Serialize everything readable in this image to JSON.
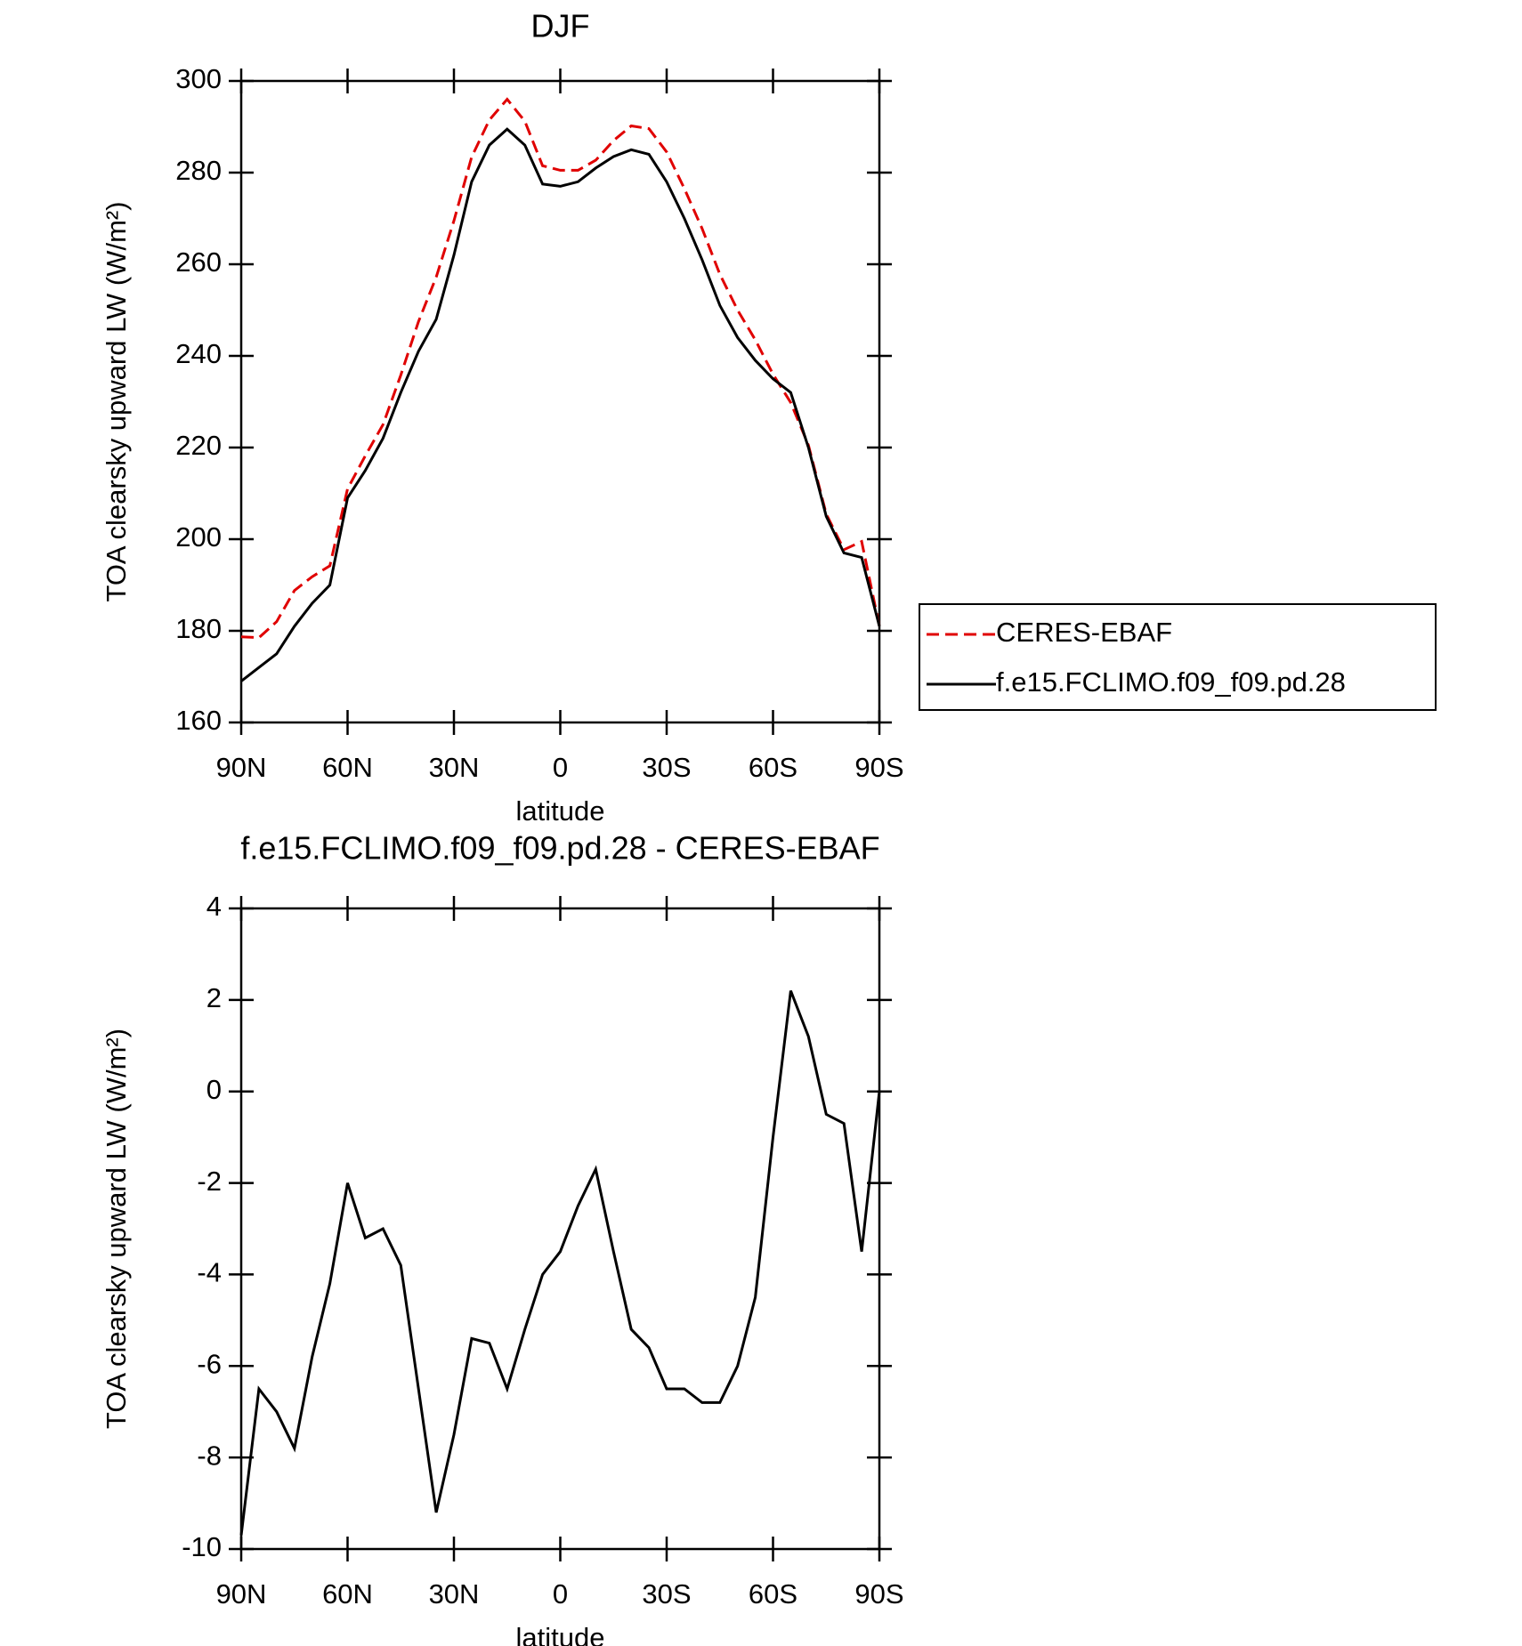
{
  "chart_data": [
    {
      "type": "line",
      "title": "DJF",
      "xlabel": "latitude",
      "ylabel": "TOA clearsky upward LW (W/m²)",
      "x": [
        90,
        85,
        80,
        75,
        70,
        65,
        60,
        55,
        50,
        45,
        40,
        35,
        30,
        25,
        20,
        15,
        10,
        5,
        0,
        -5,
        -10,
        -15,
        -20,
        -25,
        -30,
        -35,
        -40,
        -45,
        -50,
        -55,
        -60,
        -65,
        -70,
        -75,
        -80,
        -85,
        -90
      ],
      "series": [
        {
          "name": "CERES-EBAF",
          "color": "#e00000",
          "line_style": "dashed",
          "values": [
            178.7,
            178.5,
            182,
            188.8,
            191.8,
            194.2,
            211,
            218.2,
            225,
            235.8,
            247.5,
            257.2,
            269.5,
            283.4,
            291.5,
            296,
            291.2,
            281.5,
            280.5,
            280.5,
            282.7,
            287,
            290.2,
            289.6,
            284.5,
            276.5,
            267.8,
            257.8,
            250,
            243.5,
            236,
            229.8,
            220.5,
            205.5,
            197.7,
            199.5,
            181
          ]
        },
        {
          "name": "f.e15.FCLIMO.f09_f09.pd.28",
          "color": "#000000",
          "line_style": "solid",
          "values": [
            169,
            172,
            175,
            181,
            186,
            190,
            209,
            215,
            222,
            232,
            241,
            248,
            262,
            278,
            286,
            289.5,
            286,
            277.5,
            277,
            278,
            281,
            283.5,
            285,
            284,
            278,
            270,
            261,
            251,
            244,
            239,
            235,
            232,
            220,
            205,
            197,
            196,
            181
          ]
        }
      ],
      "xlim": [
        90,
        -90
      ],
      "xticks": [
        {
          "value": 90,
          "label": "90N"
        },
        {
          "value": 60,
          "label": "60N"
        },
        {
          "value": 30,
          "label": "30N"
        },
        0,
        {
          "value": -30,
          "label": "30S"
        },
        {
          "value": -60,
          "label": "60S"
        },
        {
          "value": -90,
          "label": "90S"
        }
      ],
      "ylim": [
        160,
        300
      ],
      "yticks": [
        160,
        180,
        200,
        220,
        240,
        260,
        280,
        300
      ],
      "legend": "outside-right"
    },
    {
      "type": "line",
      "title": "f.e15.FCLIMO.f09_f09.pd.28 - CERES-EBAF",
      "xlabel": "latitude",
      "ylabel": "TOA clearsky upward LW (W/m²)",
      "x": [
        90,
        85,
        80,
        75,
        70,
        65,
        60,
        55,
        50,
        45,
        40,
        35,
        30,
        25,
        20,
        15,
        10,
        5,
        0,
        -5,
        -10,
        -15,
        -20,
        -25,
        -30,
        -35,
        -40,
        -45,
        -50,
        -55,
        -60,
        -65,
        -70,
        -75,
        -80,
        -85,
        -90
      ],
      "values": [
        -9.7,
        -6.5,
        -7,
        -7.8,
        -5.8,
        -4.2,
        -2,
        -3.2,
        -3,
        -3.8,
        -6.5,
        -9.2,
        -7.5,
        -5.4,
        -5.5,
        -6.5,
        -5.2,
        -4,
        -3.5,
        -2.5,
        -1.7,
        -3.5,
        -5.2,
        -5.6,
        -6.5,
        -6.5,
        -6.8,
        -6.8,
        -6,
        -4.5,
        -1,
        2.2,
        1.2,
        -0.5,
        -0.7,
        -3.5,
        0
      ],
      "color": "#000000",
      "xlim": [
        90,
        -90
      ],
      "xticks": [
        {
          "value": 90,
          "label": "90N"
        },
        {
          "value": 60,
          "label": "60N"
        },
        {
          "value": 30,
          "label": "30N"
        },
        0,
        {
          "value": -30,
          "label": "30S"
        },
        {
          "value": -60,
          "label": "60S"
        },
        {
          "value": -90,
          "label": "90S"
        }
      ],
      "ylim": [
        -10,
        4
      ],
      "yticks": [
        -10,
        -8,
        -6,
        -4,
        -2,
        0,
        2,
        4
      ]
    }
  ]
}
